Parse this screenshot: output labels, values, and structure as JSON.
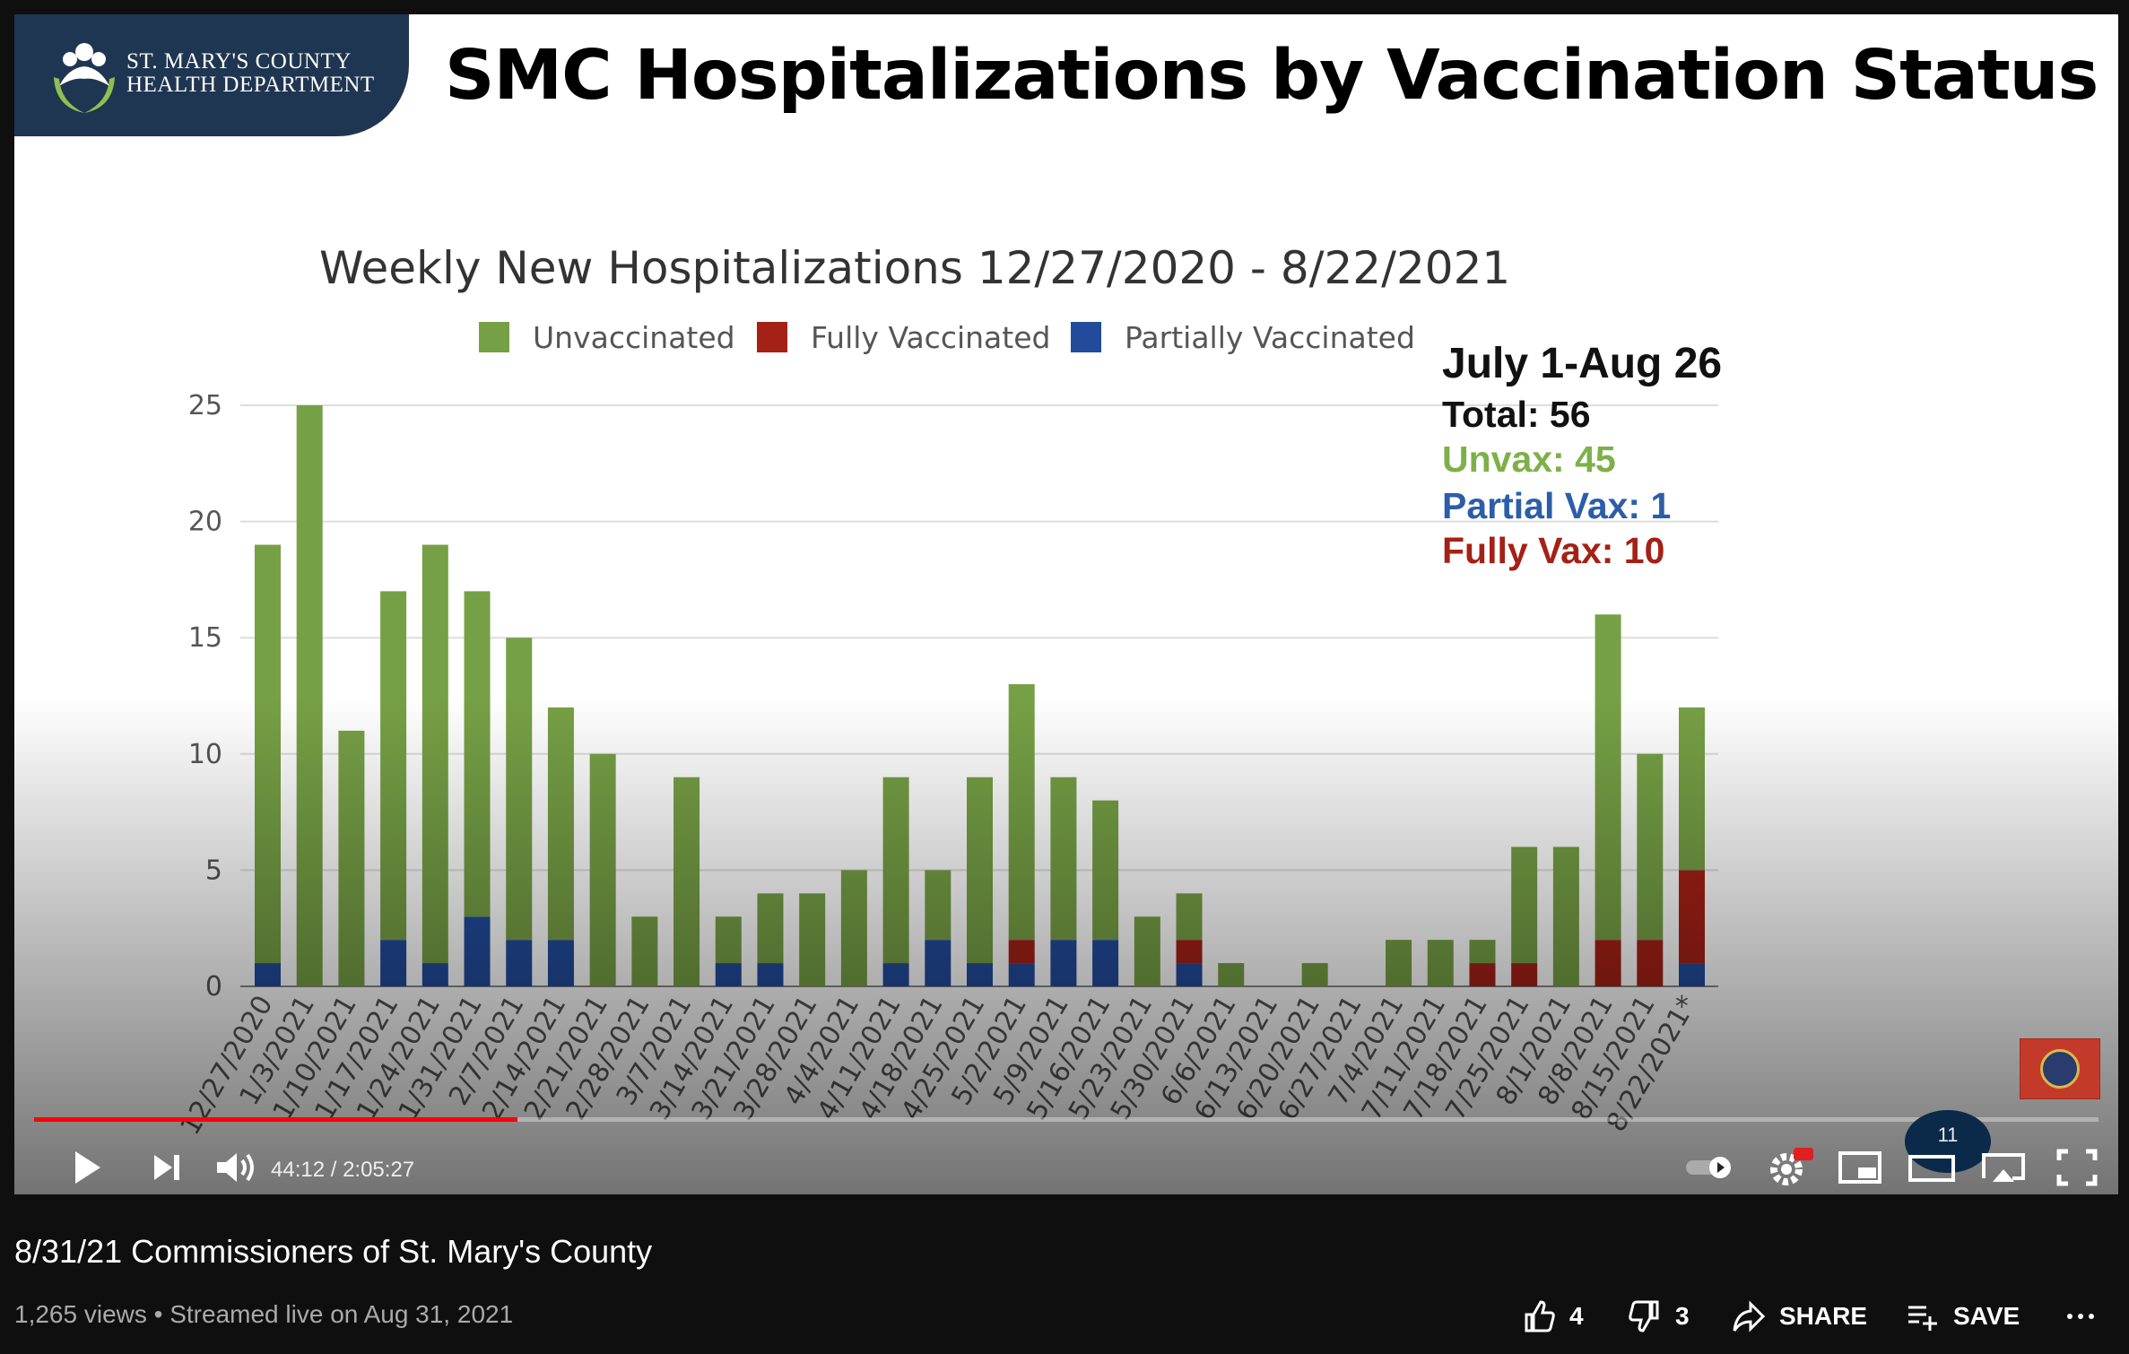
{
  "header": {
    "logo_line1": "ST. MARY'S COUNTY",
    "logo_line2": "HEALTH DEPARTMENT",
    "slide_title": "SMC Hospitalizations by Vaccination Status"
  },
  "colors": {
    "unvaccinated": "#76a045",
    "fully_vaccinated": "#a42116",
    "partially_vaccinated": "#224b9c",
    "progress": "#ff0000"
  },
  "chart_data": {
    "type": "bar",
    "stacked": true,
    "title": "Weekly New Hospitalizations 12/27/2020 - 8/22/2021",
    "xlabel": "",
    "ylabel": "",
    "ylim": [
      0,
      25
    ],
    "yticks": [
      0,
      5,
      10,
      15,
      20,
      25
    ],
    "grid": true,
    "legend_position": "top",
    "categories": [
      "12/27/2020",
      "1/3/2021",
      "1/10/2021",
      "1/17/2021",
      "1/24/2021",
      "1/31/2021",
      "2/7/2021",
      "2/14/2021",
      "2/21/2021",
      "2/28/2021",
      "3/7/2021",
      "3/14/2021",
      "3/21/2021",
      "3/28/2021",
      "4/4/2021",
      "4/11/2021",
      "4/18/2021",
      "4/25/2021",
      "5/2/2021",
      "5/9/2021",
      "5/16/2021",
      "5/23/2021",
      "5/30/2021",
      "6/6/2021",
      "6/13/2021",
      "6/20/2021",
      "6/27/2021",
      "7/4/2021",
      "7/11/2021",
      "7/18/2021",
      "7/25/2021",
      "8/1/2021",
      "8/8/2021",
      "8/15/2021",
      "8/22/2021*"
    ],
    "series": [
      {
        "name": "Partially Vaccinated",
        "values": [
          1,
          0,
          0,
          2,
          1,
          3,
          2,
          2,
          0,
          0,
          0,
          1,
          1,
          0,
          0,
          1,
          2,
          1,
          1,
          2,
          2,
          0,
          1,
          0,
          0,
          0,
          0,
          0,
          0,
          0,
          0,
          0,
          0,
          0,
          1
        ]
      },
      {
        "name": "Fully Vaccinated",
        "values": [
          0,
          0,
          0,
          0,
          0,
          0,
          0,
          0,
          0,
          0,
          0,
          0,
          0,
          0,
          0,
          0,
          0,
          0,
          1,
          0,
          0,
          0,
          1,
          0,
          0,
          0,
          0,
          0,
          0,
          1,
          1,
          0,
          2,
          2,
          4
        ]
      },
      {
        "name": "Unvaccinated",
        "values": [
          18,
          25,
          11,
          15,
          18,
          14,
          13,
          10,
          10,
          3,
          9,
          2,
          3,
          4,
          5,
          8,
          3,
          8,
          11,
          7,
          6,
          3,
          2,
          1,
          0,
          1,
          0,
          2,
          2,
          1,
          5,
          6,
          14,
          8,
          7
        ]
      }
    ],
    "legend_order": [
      "Unvaccinated",
      "Fully Vaccinated",
      "Partially Vaccinated"
    ],
    "annotation": {
      "title": "July 1-Aug 26",
      "total": "Total: 56",
      "unvax": "Unvax: 45",
      "partial": "Partial Vax: 1",
      "fully": "Fully Vax: 10"
    }
  },
  "player": {
    "time": "44:12 / 2:05:27",
    "progress_fraction": 0.234,
    "chapter_badge": "11"
  },
  "video": {
    "title": "8/31/21 Commissioners of St. Mary's County",
    "meta": "1,265 views • Streamed live on Aug 31, 2021",
    "likes": "4",
    "dislikes": "3",
    "share_label": "SHARE",
    "save_label": "SAVE"
  }
}
